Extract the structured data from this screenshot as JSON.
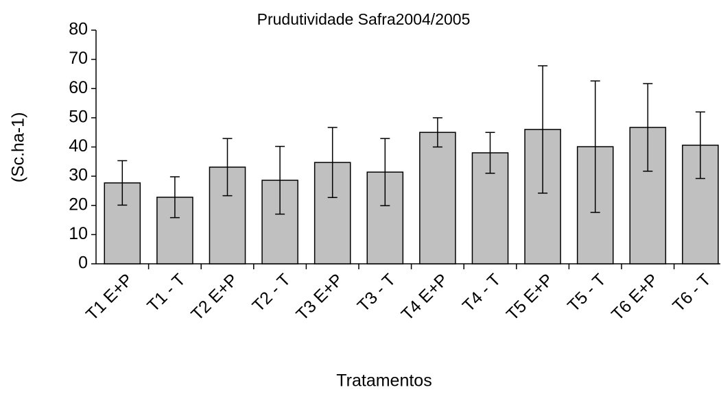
{
  "chart_data": {
    "type": "bar",
    "title": "Prudutividade Safra2004/2005",
    "x_label": "Tratamentos",
    "y_label": "(Sc.ha-1)",
    "categories": [
      "T1 E+P",
      "T1 - T",
      "T2 E+P",
      "T2 - T",
      "T3 E+P",
      "T3 - T",
      "T4 E+P",
      "T4 - T",
      "T5 E+P",
      "T5 - T",
      "T6 E+P",
      "T6 - T"
    ],
    "values": [
      27.7,
      22.8,
      33.1,
      28.6,
      34.7,
      31.4,
      45,
      38,
      46,
      40.1,
      46.7,
      40.6
    ],
    "errors": [
      7.6,
      7,
      9.8,
      11.6,
      12,
      11.5,
      5,
      7,
      21.8,
      22.5,
      15,
      11.4
    ],
    "color": "#c0c0c0",
    "ylim": [
      0,
      80
    ],
    "yticks": [
      0,
      10,
      20,
      30,
      40,
      50,
      60,
      70,
      80
    ],
    "grid": false
  }
}
